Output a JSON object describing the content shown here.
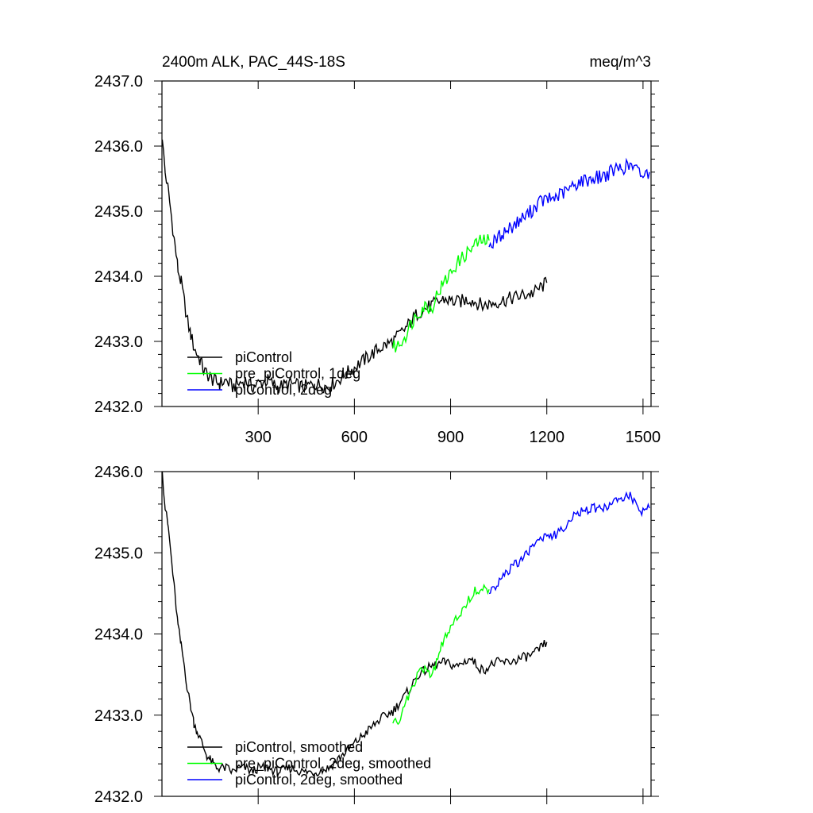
{
  "figure": {
    "title_left": "2400m ALK, PAC_44S-18S",
    "title_right": "meq/m^3"
  },
  "colors": {
    "piControl": "#000000",
    "pre_piControl": "#00ff00",
    "piControl_2deg": "#0000ff"
  },
  "chart_data": [
    {
      "type": "line",
      "title": "2400m ALK, PAC_44S-18S",
      "units": "meq/m^3",
      "xlim": [
        0,
        1525
      ],
      "ylim": [
        2432.0,
        2437.0
      ],
      "x_ticks": [
        300,
        600,
        900,
        1200,
        1500
      ],
      "x_tick_labels": [
        "300",
        "600",
        "900",
        "1200",
        "1500"
      ],
      "y_ticks": [
        2432.0,
        2433.0,
        2434.0,
        2435.0,
        2436.0,
        2437.0
      ],
      "y_tick_labels": [
        "2432.0",
        "2433.0",
        "2434.0",
        "2435.0",
        "2436.0",
        "2437.0"
      ],
      "grid": false,
      "legend_position": "bottom-left",
      "series": [
        {
          "name": "piControl",
          "color": "#000000",
          "x": [
            1,
            10,
            20,
            30,
            40,
            50,
            60,
            70,
            80,
            90,
            100,
            110,
            120,
            130,
            140,
            150,
            160,
            170,
            180,
            200,
            220,
            240,
            260,
            280,
            300,
            330,
            360,
            400,
            440,
            480,
            520,
            560,
            600,
            640,
            680,
            720,
            760,
            800,
            840,
            880,
            920,
            960,
            1000,
            1040,
            1080,
            1120,
            1160,
            1200
          ],
          "y": [
            2436.1,
            2435.6,
            2435.3,
            2434.9,
            2434.5,
            2434.1,
            2433.9,
            2433.6,
            2433.3,
            2433.1,
            2432.9,
            2432.8,
            2432.7,
            2432.55,
            2432.5,
            2432.45,
            2432.4,
            2432.38,
            2432.35,
            2432.4,
            2432.3,
            2432.35,
            2432.4,
            2432.3,
            2432.35,
            2432.4,
            2432.3,
            2432.35,
            2432.3,
            2432.35,
            2432.3,
            2432.45,
            2432.6,
            2432.75,
            2432.9,
            2433.0,
            2433.2,
            2433.45,
            2433.55,
            2433.65,
            2433.6,
            2433.65,
            2433.55,
            2433.6,
            2433.65,
            2433.7,
            2433.75,
            2433.9
          ]
        },
        {
          "name": "pre_piControl, 1deg",
          "color": "#00ff00",
          "x": [
            720,
            740,
            760,
            780,
            800,
            820,
            840,
            860,
            880,
            900,
            920,
            940,
            960,
            980,
            1000,
            1020
          ],
          "y": [
            2432.9,
            2432.95,
            2433.1,
            2433.3,
            2433.45,
            2433.55,
            2433.5,
            2433.75,
            2433.9,
            2434.05,
            2434.2,
            2434.3,
            2434.4,
            2434.5,
            2434.55,
            2434.55
          ]
        },
        {
          "name": "piControl, 2deg",
          "color": "#0000ff",
          "x": [
            1020,
            1060,
            1100,
            1140,
            1180,
            1220,
            1260,
            1300,
            1340,
            1380,
            1420,
            1460,
            1500,
            1520
          ],
          "y": [
            2434.45,
            2434.65,
            2434.8,
            2434.95,
            2435.15,
            2435.2,
            2435.3,
            2435.45,
            2435.5,
            2435.55,
            2435.65,
            2435.7,
            2435.55,
            2435.6
          ]
        }
      ]
    },
    {
      "type": "line",
      "xlim": [
        0,
        1525
      ],
      "ylim": [
        2432.0,
        2436.0
      ],
      "x_ticks": [
        300,
        600,
        900,
        1200,
        1500
      ],
      "y_ticks": [
        2432.0,
        2433.0,
        2434.0,
        2435.0,
        2436.0
      ],
      "y_tick_labels": [
        "2432.0",
        "2433.0",
        "2434.0",
        "2435.0",
        "2436.0"
      ],
      "grid": false,
      "legend_position": "bottom-left",
      "series": [
        {
          "name": "piControl, smoothed",
          "color": "#000000",
          "x": [
            1,
            10,
            20,
            30,
            40,
            50,
            60,
            70,
            80,
            90,
            100,
            110,
            120,
            130,
            140,
            150,
            160,
            170,
            180,
            200,
            220,
            240,
            260,
            280,
            300,
            330,
            360,
            400,
            440,
            480,
            520,
            560,
            600,
            640,
            680,
            720,
            760,
            800,
            840,
            880,
            920,
            960,
            1000,
            1040,
            1080,
            1120,
            1160,
            1200
          ],
          "y": [
            2436.0,
            2435.55,
            2435.3,
            2434.9,
            2434.5,
            2434.1,
            2433.85,
            2433.6,
            2433.3,
            2433.1,
            2432.9,
            2432.8,
            2432.7,
            2432.6,
            2432.5,
            2432.45,
            2432.4,
            2432.35,
            2432.35,
            2432.35,
            2432.3,
            2432.35,
            2432.35,
            2432.3,
            2432.35,
            2432.35,
            2432.3,
            2432.35,
            2432.3,
            2432.3,
            2432.35,
            2432.5,
            2432.65,
            2432.8,
            2432.95,
            2433.05,
            2433.25,
            2433.5,
            2433.6,
            2433.65,
            2433.6,
            2433.7,
            2433.55,
            2433.65,
            2433.65,
            2433.7,
            2433.75,
            2433.9
          ]
        },
        {
          "name": "pre_piControl, 2deg, smoothed",
          "color": "#00ff00",
          "x": [
            720,
            740,
            760,
            780,
            800,
            820,
            840,
            860,
            880,
            900,
            920,
            940,
            960,
            980,
            1000,
            1020
          ],
          "y": [
            2432.9,
            2432.95,
            2433.15,
            2433.35,
            2433.5,
            2433.6,
            2433.45,
            2433.7,
            2433.95,
            2434.05,
            2434.2,
            2434.3,
            2434.45,
            2434.55,
            2434.55,
            2434.55
          ]
        },
        {
          "name": "piControl, 2deg, smoothed",
          "color": "#0000ff",
          "x": [
            1020,
            1060,
            1100,
            1140,
            1180,
            1220,
            1260,
            1300,
            1340,
            1380,
            1420,
            1460,
            1500,
            1520
          ],
          "y": [
            2434.5,
            2434.7,
            2434.85,
            2435.0,
            2435.2,
            2435.2,
            2435.35,
            2435.5,
            2435.55,
            2435.55,
            2435.65,
            2435.7,
            2435.5,
            2435.55
          ]
        }
      ]
    }
  ],
  "legends": {
    "top": [
      "piControl",
      "pre_piControl, 1deg",
      "piControl, 2deg"
    ],
    "bottom": [
      "piControl, smoothed",
      "pre_piControl, 2deg, smoothed",
      "piControl, 2deg, smoothed"
    ]
  }
}
